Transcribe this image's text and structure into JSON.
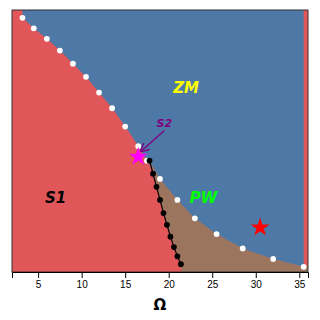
{
  "chart_data": {
    "type": "scatter",
    "xlabel": "Ω",
    "xlim": [
      2,
      36
    ],
    "ylim": [
      0,
      1
    ],
    "xticks": [
      5,
      10,
      15,
      20,
      25,
      30,
      35
    ],
    "tick_labels": "x",
    "series": [
      {
        "x": [
          3.2,
          4.5,
          6.0,
          7.5,
          9.0,
          10.5,
          12.0,
          13.5,
          15.0,
          16.5,
          17.5,
          19.0,
          21.0,
          23.0,
          25.5,
          28.5,
          32.0,
          35.5
        ],
        "values": [
          0.97,
          0.93,
          0.89,
          0.845,
          0.795,
          0.745,
          0.685,
          0.625,
          0.555,
          0.48,
          0.425,
          0.355,
          0.275,
          0.205,
          0.145,
          0.09,
          0.05,
          0.02
        ],
        "color": "white",
        "marker": "circle"
      },
      {
        "x": [
          17.8,
          18.2,
          18.6,
          19.0,
          19.4,
          19.8,
          20.2,
          20.6,
          21.0,
          21.4
        ],
        "values": [
          0.425,
          0.375,
          0.325,
          0.275,
          0.225,
          0.18,
          0.135,
          0.095,
          0.06,
          0.03
        ],
        "color": "black",
        "marker": "circle",
        "line_style": "solid"
      },
      {
        "x": [
          16.5
        ],
        "values": [
          0.44
        ],
        "color": "magenta",
        "marker": "star"
      },
      {
        "x": [
          30.5
        ],
        "values": [
          0.17
        ],
        "color": "red",
        "marker": "star"
      }
    ],
    "annotations": [
      {
        "text": "ZM",
        "x": 22,
        "y": 0.7,
        "color": "yellow"
      },
      {
        "text": "S1",
        "x": 7,
        "y": 0.28,
        "color": "black"
      },
      {
        "text": "PW",
        "x": 24,
        "y": 0.28,
        "color": "lime"
      },
      {
        "text": "S2",
        "x": 19.5,
        "y": 0.54,
        "color": "purple",
        "arrow_x": 16.8,
        "arrow_y": 0.46
      }
    ]
  }
}
